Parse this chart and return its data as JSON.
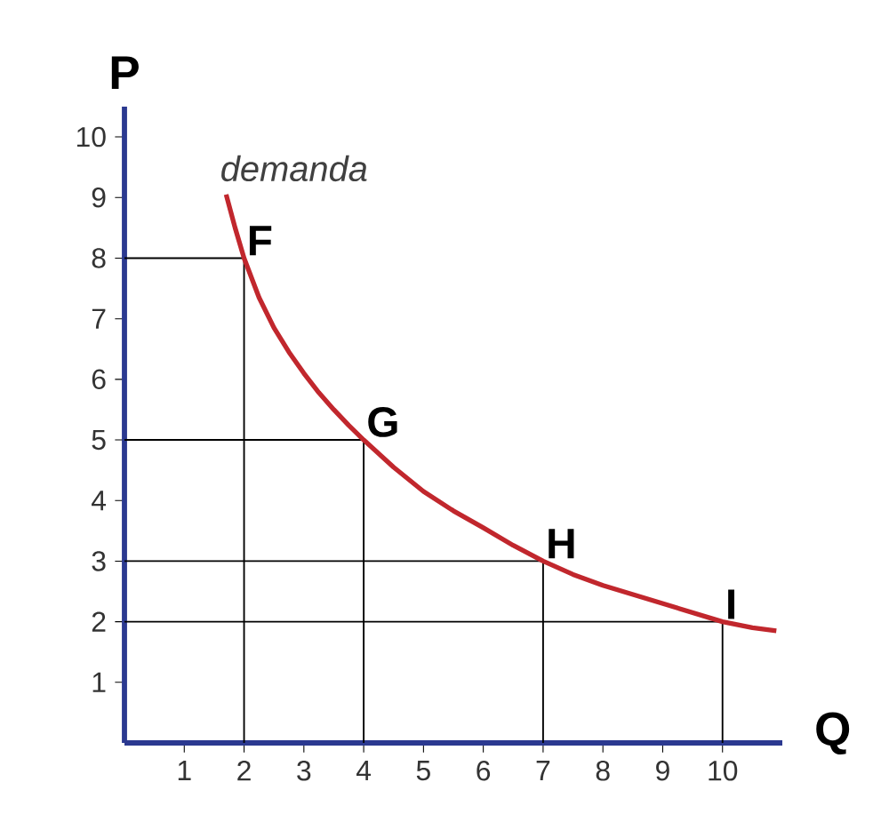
{
  "chart_data": {
    "type": "line",
    "xlabel": "Q",
    "ylabel": "P",
    "xlim": [
      0,
      11
    ],
    "ylim": [
      0,
      10.5
    ],
    "xticks": [
      1,
      2,
      3,
      4,
      5,
      6,
      7,
      8,
      9,
      10
    ],
    "yticks": [
      1,
      2,
      3,
      4,
      5,
      6,
      7,
      8,
      9,
      10
    ],
    "grid": false,
    "legend": false,
    "marker": "none",
    "line_style": "solid",
    "series": [
      {
        "color": "#000000",
        "x": [
          0,
          2,
          2
        ],
        "values": [
          8,
          8,
          0
        ]
      },
      {
        "color": "#000000",
        "x": [
          0,
          4,
          4
        ],
        "values": [
          5,
          5,
          0
        ]
      },
      {
        "color": "#000000",
        "x": [
          0,
          7,
          7
        ],
        "values": [
          3,
          3,
          0
        ]
      },
      {
        "color": "#000000",
        "x": [
          0,
          10,
          10
        ],
        "values": [
          2,
          2,
          0
        ]
      },
      {
        "name": "demanda",
        "color": "#c1272d",
        "x": [
          1.7,
          1.85,
          2,
          2.25,
          2.5,
          2.75,
          3,
          3.25,
          3.5,
          3.75,
          4,
          4.5,
          5,
          5.5,
          6,
          6.5,
          7,
          7.5,
          8,
          8.5,
          9,
          9.5,
          10,
          10.5,
          10.9
        ],
        "values": [
          9.05,
          8.5,
          8,
          7.35,
          6.85,
          6.45,
          6.1,
          5.78,
          5.5,
          5.24,
          5,
          4.55,
          4.15,
          3.83,
          3.55,
          3.26,
          3,
          2.78,
          2.6,
          2.45,
          2.3,
          2.15,
          2,
          1.9,
          1.85
        ]
      }
    ],
    "annotations": [
      {
        "text": "F",
        "x": 2,
        "y": 8
      },
      {
        "text": "G",
        "x": 4,
        "y": 5
      },
      {
        "text": "H",
        "x": 7,
        "y": 3
      },
      {
        "text": "I",
        "x": 10,
        "y": 2
      }
    ]
  }
}
